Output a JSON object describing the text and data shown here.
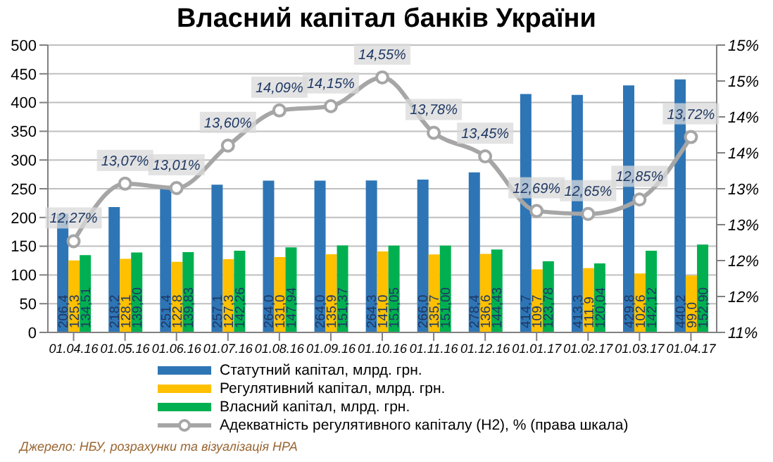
{
  "chart_data": {
    "type": "bar",
    "title": "Власний капітал банків України",
    "categories": [
      "01.04.16",
      "01.05.16",
      "01.06.16",
      "01.07.16",
      "01.08.16",
      "01.09.16",
      "01.10.16",
      "01.11.16",
      "01.12.16",
      "01.01.17",
      "01.02.17",
      "01.03.17",
      "01.04.17"
    ],
    "series": [
      {
        "name": "Статутний капітал, млрд. грн.",
        "color": "#2e75b6",
        "values": [
          206.4,
          218.2,
          251.4,
          257.1,
          264.0,
          264.0,
          264.3,
          266.0,
          278.4,
          414.7,
          413.3,
          429.8,
          440.2
        ],
        "value_labels": [
          "206,4",
          "218,2",
          "251,4",
          "257,1",
          "264,0",
          "264,0",
          "264,3",
          "266,0",
          "278,4",
          "414,7",
          "413,3",
          "429,8",
          "440,2"
        ]
      },
      {
        "name": "Регулятивний капітал, млрд. грн.",
        "color": "#ffc000",
        "values": [
          125.3,
          128.1,
          122.8,
          127.3,
          131.0,
          135.9,
          141.0,
          135.7,
          136.6,
          109.7,
          111.9,
          102.6,
          99.0
        ],
        "value_labels": [
          "125,3",
          "128,1",
          "122,8",
          "127,3",
          "131,0",
          "135,9",
          "141,0",
          "135,7",
          "136,6",
          "109,7",
          "111,9",
          "102,6",
          "99,0"
        ]
      },
      {
        "name": "Власний капітал, млрд. грн.",
        "color": "#00b050",
        "values": [
          134.51,
          139.2,
          139.83,
          142.26,
          147.94,
          151.37,
          151.05,
          151.0,
          144.43,
          123.78,
          120.04,
          142.12,
          152.9
        ],
        "value_labels": [
          "134,51",
          "139,20",
          "139,83",
          "142,26",
          "147,94",
          "151,37",
          "151,05",
          "151,00",
          "144,43",
          "123,78",
          "120,04",
          "142,12",
          "152,90"
        ]
      },
      {
        "name": "Адекватність регулятивного капіталу (Н2), %  (права шкала)",
        "type": "line",
        "axis": "y2",
        "color": "#a6a6a6",
        "values": [
          12.27,
          13.07,
          13.01,
          13.6,
          14.09,
          14.15,
          14.55,
          13.78,
          13.45,
          12.69,
          12.65,
          12.85,
          13.72
        ],
        "value_labels": [
          "12,27%",
          "13,07%",
          "13,01%",
          "13,60%",
          "14,09%",
          "14,15%",
          "14,55%",
          "13,78%",
          "13,45%",
          "12,69%",
          "12,65%",
          "12,85%",
          "13,72%"
        ]
      }
    ],
    "ylim": [
      0,
      500
    ],
    "yticks": [
      0,
      50,
      100,
      150,
      200,
      250,
      300,
      350,
      400,
      450,
      500
    ],
    "y2lim": [
      11,
      15
    ],
    "y2ticks": [
      {
        "value": 11,
        "label": "11%"
      },
      {
        "value": 11.5,
        "label": "12%"
      },
      {
        "value": 12,
        "label": "12%"
      },
      {
        "value": 12.5,
        "label": "13%"
      },
      {
        "value": 13,
        "label": "13%"
      },
      {
        "value": 13.5,
        "label": "14%"
      },
      {
        "value": 14,
        "label": "14%"
      },
      {
        "value": 14.5,
        "label": "15%"
      },
      {
        "value": 15,
        "label": "15%"
      }
    ],
    "grid": "y",
    "legend": "bottom",
    "marker": "circle",
    "annotations": [
      "Джерело:  НБУ,  розрахунки   та  візуалізація НРА"
    ]
  }
}
